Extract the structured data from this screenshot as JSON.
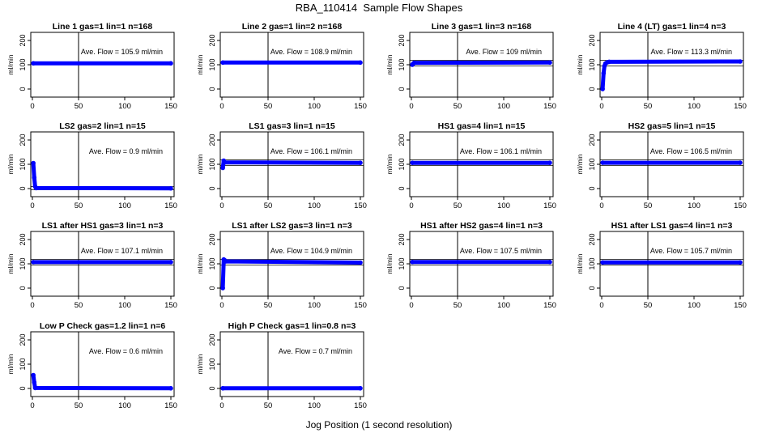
{
  "figure": {
    "title": "RBA_110414  Sample Flow Shapes",
    "xlabel": "Jog Position (1 second resolution)"
  },
  "colors": {
    "points": "#0000ff",
    "axes": "#000000"
  },
  "chart_data": [
    {
      "type": "scatter",
      "title": "Line 1 gas=1 lin=1 n=168",
      "ylabel": "ml/min",
      "xlim": [
        0,
        150
      ],
      "ylim": [
        -20,
        220
      ],
      "xticks": [
        0,
        50,
        100,
        150
      ],
      "yticks": [
        0,
        100,
        200
      ],
      "vline": 50,
      "hlines": [],
      "annotation": "Ave. Flow =  105.9  ml/min",
      "average": 105.9,
      "points": [
        [
          1,
          105.9
        ],
        [
          150,
          105.9
        ]
      ]
    },
    {
      "type": "scatter",
      "title": "Line 2 gas=1 lin=2 n=168",
      "ylabel": "ml/min",
      "xlim": [
        0,
        150
      ],
      "ylim": [
        -20,
        220
      ],
      "xticks": [
        0,
        50,
        100,
        150
      ],
      "yticks": [
        0,
        100,
        200
      ],
      "vline": 50,
      "hlines": [],
      "annotation": "Ave. Flow =  108.9  ml/min",
      "average": 108.9,
      "points": [
        [
          1,
          108.9
        ],
        [
          150,
          108.9
        ]
      ]
    },
    {
      "type": "scatter",
      "title": "Line 3 gas=1 lin=3 n=168",
      "ylabel": "ml/min",
      "xlim": [
        0,
        150
      ],
      "ylim": [
        -20,
        220
      ],
      "xticks": [
        0,
        50,
        100,
        150
      ],
      "yticks": [
        0,
        100,
        200
      ],
      "vline": 50,
      "hlines": [
        95,
        118
      ],
      "annotation": "Ave. Flow =  109  ml/min",
      "average": 109,
      "points": [
        [
          1,
          100
        ],
        [
          2,
          105
        ],
        [
          3,
          108
        ],
        [
          150,
          109
        ]
      ]
    },
    {
      "type": "scatter",
      "title": "Line 4 (LT) gas=1 lin=4 n=3",
      "ylabel": "ml/min",
      "xlim": [
        0,
        150
      ],
      "ylim": [
        -20,
        220
      ],
      "xticks": [
        0,
        50,
        100,
        150
      ],
      "yticks": [
        0,
        100,
        200
      ],
      "vline": 50,
      "hlines": [
        95,
        118
      ],
      "annotation": "Ave. Flow =  113.3  ml/min",
      "average": 113.3,
      "points": [
        [
          1,
          0
        ],
        [
          2,
          65
        ],
        [
          3,
          95
        ],
        [
          4,
          105
        ],
        [
          6,
          110
        ],
        [
          8,
          112
        ],
        [
          150,
          113.3
        ]
      ]
    },
    {
      "type": "scatter",
      "title": "LS2 gas=2 lin=1 n=15",
      "ylabel": "ml/min",
      "xlim": [
        0,
        150
      ],
      "ylim": [
        -20,
        220
      ],
      "xticks": [
        0,
        50,
        100,
        150
      ],
      "yticks": [
        0,
        100,
        200
      ],
      "vline": 50,
      "hlines": [
        -5,
        8
      ],
      "annotation": "Ave. Flow =  0.9  ml/min",
      "average": 0.9,
      "points": [
        [
          1,
          105
        ],
        [
          2,
          45
        ],
        [
          3,
          8
        ],
        [
          4,
          2
        ],
        [
          150,
          0.9
        ]
      ]
    },
    {
      "type": "scatter",
      "title": "LS1 gas=3 lin=1 n=15",
      "ylabel": "ml/min",
      "xlim": [
        0,
        150
      ],
      "ylim": [
        -20,
        220
      ],
      "xticks": [
        0,
        50,
        100,
        150
      ],
      "yticks": [
        0,
        100,
        200
      ],
      "vline": 50,
      "hlines": [
        95,
        118
      ],
      "annotation": "Ave. Flow =  106.1  ml/min",
      "average": 106.1,
      "points": [
        [
          1,
          85
        ],
        [
          2,
          115
        ],
        [
          3,
          108
        ],
        [
          150,
          106.1
        ]
      ]
    },
    {
      "type": "scatter",
      "title": "HS1 gas=4 lin=1 n=15",
      "ylabel": "ml/min",
      "xlim": [
        0,
        150
      ],
      "ylim": [
        -20,
        220
      ],
      "xticks": [
        0,
        50,
        100,
        150
      ],
      "yticks": [
        0,
        100,
        200
      ],
      "vline": 50,
      "hlines": [
        95,
        118
      ],
      "annotation": "Ave. Flow =  106.1  ml/min",
      "average": 106.1,
      "points": [
        [
          1,
          106.1
        ],
        [
          150,
          106.1
        ]
      ]
    },
    {
      "type": "scatter",
      "title": "HS2 gas=5 lin=1 n=15",
      "ylabel": "ml/min",
      "xlim": [
        0,
        150
      ],
      "ylim": [
        -20,
        220
      ],
      "xticks": [
        0,
        50,
        100,
        150
      ],
      "yticks": [
        0,
        100,
        200
      ],
      "vline": 50,
      "hlines": [
        95,
        118
      ],
      "annotation": "Ave. Flow =  106.5  ml/min",
      "average": 106.5,
      "points": [
        [
          1,
          106.5
        ],
        [
          150,
          106.5
        ]
      ]
    },
    {
      "type": "scatter",
      "title": "LS1 after HS1 gas=3 lin=1 n=3",
      "ylabel": "ml/min",
      "xlim": [
        0,
        150
      ],
      "ylim": [
        -20,
        220
      ],
      "xticks": [
        0,
        50,
        100,
        150
      ],
      "yticks": [
        0,
        100,
        200
      ],
      "vline": 50,
      "hlines": [
        95,
        118
      ],
      "annotation": "Ave. Flow =  107.1  ml/min",
      "average": 107.1,
      "points": [
        [
          1,
          107.1
        ],
        [
          150,
          107.1
        ]
      ]
    },
    {
      "type": "scatter",
      "title": "LS1 after LS2 gas=3 lin=1 n=3",
      "ylabel": "ml/min",
      "xlim": [
        0,
        150
      ],
      "ylim": [
        -20,
        220
      ],
      "xticks": [
        0,
        50,
        100,
        150
      ],
      "yticks": [
        0,
        100,
        200
      ],
      "vline": 50,
      "hlines": [
        95,
        118
      ],
      "annotation": "Ave. Flow =  104.9  ml/min",
      "average": 104.9,
      "points": [
        [
          1,
          0
        ],
        [
          2,
          118
        ],
        [
          3,
          115
        ],
        [
          4,
          110
        ],
        [
          150,
          104.9
        ]
      ]
    },
    {
      "type": "scatter",
      "title": "HS1 after HS2 gas=4 lin=1 n=3",
      "ylabel": "ml/min",
      "xlim": [
        0,
        150
      ],
      "ylim": [
        -20,
        220
      ],
      "xticks": [
        0,
        50,
        100,
        150
      ],
      "yticks": [
        0,
        100,
        200
      ],
      "vline": 50,
      "hlines": [
        95,
        118
      ],
      "annotation": "Ave. Flow =  107.5  ml/min",
      "average": 107.5,
      "points": [
        [
          1,
          107.5
        ],
        [
          150,
          107.5
        ]
      ]
    },
    {
      "type": "scatter",
      "title": "HS1 after LS1 gas=4 lin=1 n=3",
      "ylabel": "ml/min",
      "xlim": [
        0,
        150
      ],
      "ylim": [
        -20,
        220
      ],
      "xticks": [
        0,
        50,
        100,
        150
      ],
      "yticks": [
        0,
        100,
        200
      ],
      "vline": 50,
      "hlines": [
        95,
        118
      ],
      "annotation": "Ave. Flow =  105.7  ml/min",
      "average": 105.7,
      "points": [
        [
          1,
          105.7
        ],
        [
          150,
          105.7
        ]
      ]
    },
    {
      "type": "scatter",
      "title": "Low P Check gas=1.2 lin=1 n=6",
      "ylabel": "ml/min",
      "xlim": [
        0,
        150
      ],
      "ylim": [
        -20,
        220
      ],
      "xticks": [
        0,
        50,
        100,
        150
      ],
      "yticks": [
        0,
        100,
        200
      ],
      "vline": 50,
      "hlines": [],
      "annotation": "Ave. Flow =  0.6  ml/min",
      "average": 0.6,
      "points": [
        [
          1,
          55
        ],
        [
          2,
          25
        ],
        [
          3,
          2
        ],
        [
          150,
          0.6
        ]
      ]
    },
    {
      "type": "scatter",
      "title": "High P Check gas=1 lin=0.8 n=3",
      "ylabel": "ml/min",
      "xlim": [
        0,
        150
      ],
      "ylim": [
        -20,
        220
      ],
      "xticks": [
        0,
        50,
        100,
        150
      ],
      "yticks": [
        0,
        100,
        200
      ],
      "vline": 50,
      "hlines": [],
      "annotation": "Ave. Flow =  0.7  ml/min",
      "average": 0.7,
      "points": [
        [
          1,
          0.7
        ],
        [
          150,
          0.7
        ]
      ]
    }
  ]
}
